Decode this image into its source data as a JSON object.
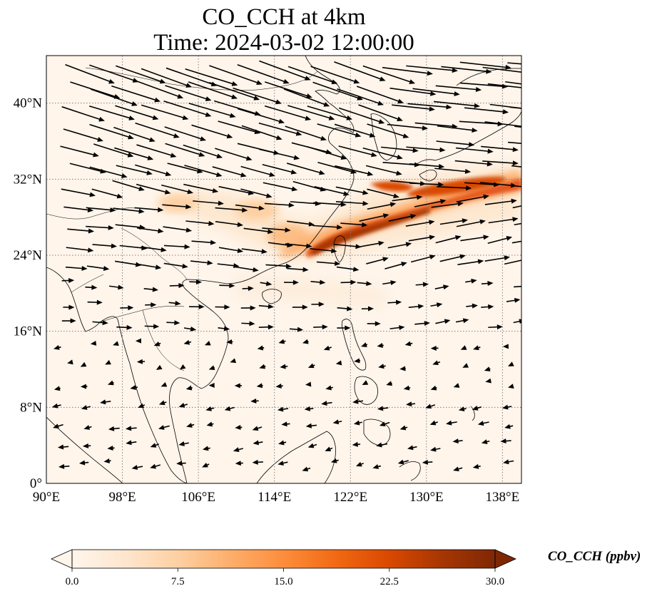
{
  "title": {
    "line1": "CO_CCH at 4km",
    "line2": "Time: 2024-03-02 12:00:00"
  },
  "map": {
    "lon_range": [
      90,
      140
    ],
    "lat_range": [
      0,
      45
    ],
    "lon_ticks": [
      "90°E",
      "98°E",
      "106°E",
      "114°E",
      "122°E",
      "130°E",
      "138°E"
    ],
    "lat_ticks": [
      "0°",
      "8°N",
      "16°N",
      "24°N",
      "32°N",
      "40°N"
    ],
    "lon_tick_values": [
      90,
      98,
      106,
      114,
      122,
      130,
      138
    ],
    "lat_tick_values": [
      0,
      8,
      16,
      24,
      32,
      40
    ],
    "gridlines": "dotted grey",
    "background_color": "#fff5eb",
    "coastline_color": "#000000",
    "plume_colors": [
      "#fde0c1",
      "#fdae6b",
      "#f16913",
      "#d94801",
      "#a63603",
      "#7f2704"
    ]
  },
  "colorbar": {
    "label": "CO_CCH (ppbv)",
    "ticks": [
      "0.0",
      "7.5",
      "15.0",
      "22.5",
      "30.0"
    ],
    "min": 0,
    "max": 30,
    "extend": "both",
    "colormap": [
      "#fff5eb",
      "#fee6ce",
      "#fdd0a2",
      "#fdae6b",
      "#fd8d3c",
      "#f16913",
      "#d94801",
      "#a63603",
      "#7f2704"
    ]
  }
}
